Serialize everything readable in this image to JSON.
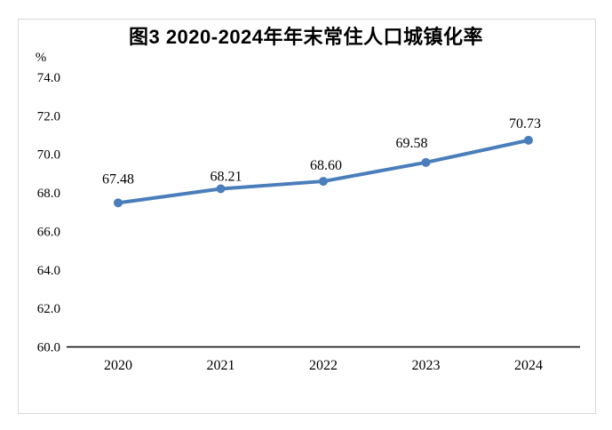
{
  "title": "图3 2020-2024年年末常住人口城镇化率",
  "chart_data": {
    "type": "line",
    "title": "图3 2020-2024年年末常住人口城镇化率",
    "unit": "%",
    "categories": [
      "2020",
      "2021",
      "2022",
      "2023",
      "2024"
    ],
    "values": [
      67.48,
      68.21,
      68.6,
      69.58,
      70.73
    ],
    "point_labels": [
      "67.48",
      "68.21",
      "68.60",
      "69.58",
      "70.73"
    ],
    "ylim": [
      60.0,
      74.0
    ],
    "ytick_labels": [
      "60.0",
      "62.0",
      "64.0",
      "66.0",
      "68.0",
      "70.0",
      "72.0",
      "74.0"
    ],
    "ytick_values": [
      60,
      62,
      64,
      66,
      68,
      70,
      72,
      74
    ],
    "xlabel": "",
    "ylabel": "%",
    "grid": false,
    "legend": "none",
    "line_color": "#4a7ebb",
    "axis_color": "#000000",
    "frame_color": "#d9d9d9",
    "background_color": "#ffffff"
  }
}
